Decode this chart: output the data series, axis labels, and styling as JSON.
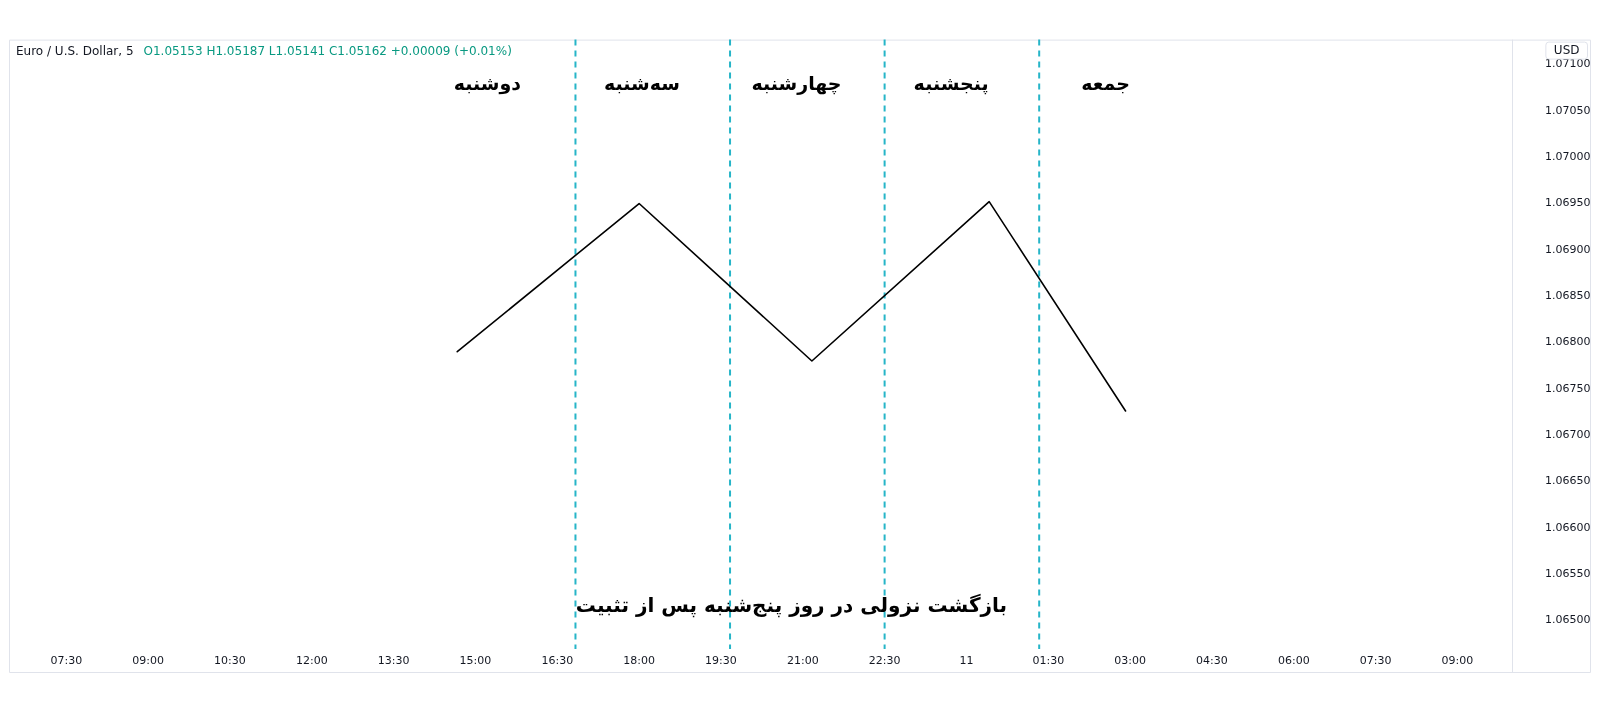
{
  "chart_data": {
    "type": "line",
    "title": "Euro / U.S. Dollar, 5",
    "subtitle": "O1.05153 H1.05187 L1.05141 C1.05162 +0.00009 (+0.01%)",
    "ylabel": "USD",
    "x": [
      "--01-10T14:40",
      "--01-10T18:00",
      "--01-10T21:10",
      "--01-11T00:25",
      "--01-11T02:55"
    ],
    "series": [
      {
        "color": "#000000",
        "values": [
          1.0679,
          1.0695,
          1.0678,
          1.06952,
          1.06726
        ]
      }
    ],
    "xlim": [
      "--01-10T06:27",
      "--01-11T10:00"
    ],
    "xticks": [
      {
        "value": "--01-10T07:30",
        "label": "07:30"
      },
      {
        "value": "--01-10T09:00",
        "label": "09:00"
      },
      {
        "value": "--01-10T10:30",
        "label": "10:30"
      },
      {
        "value": "--01-10T12:00",
        "label": "12:00"
      },
      {
        "value": "--01-10T13:30",
        "label": "13:30"
      },
      {
        "value": "--01-10T15:00",
        "label": "15:00"
      },
      {
        "value": "--01-10T16:30",
        "label": "16:30"
      },
      {
        "value": "--01-10T18:00",
        "label": "18:00"
      },
      {
        "value": "--01-10T19:30",
        "label": "19:30"
      },
      {
        "value": "--01-10T21:00",
        "label": "21:00"
      },
      {
        "value": "--01-10T22:30",
        "label": "22:30"
      },
      {
        "value": "--01-11T00:00",
        "label": "11"
      },
      {
        "value": "--01-11T01:30",
        "label": "01:30"
      },
      {
        "value": "--01-11T03:00",
        "label": "03:00"
      },
      {
        "value": "--01-11T04:30",
        "label": "04:30"
      },
      {
        "value": "--01-11T06:00",
        "label": "06:00"
      },
      {
        "value": "--01-11T07:30",
        "label": "07:30"
      },
      {
        "value": "--01-11T09:00",
        "label": "09:00"
      }
    ],
    "ylim": [
      1.06469,
      1.07127
    ],
    "yticks": [
      {
        "value": 1.065,
        "label": "1.06500"
      },
      {
        "value": 1.0655,
        "label": "1.06550"
      },
      {
        "value": 1.066,
        "label": "1.06600"
      },
      {
        "value": 1.0665,
        "label": "1.06650"
      },
      {
        "value": 1.067,
        "label": "1.06700"
      },
      {
        "value": 1.0675,
        "label": "1.06750"
      },
      {
        "value": 1.068,
        "label": "1.06800"
      },
      {
        "value": 1.0685,
        "label": "1.06850"
      },
      {
        "value": 1.069,
        "label": "1.06900"
      },
      {
        "value": 1.0695,
        "label": "1.06950"
      },
      {
        "value": 1.07,
        "label": "1.07000"
      },
      {
        "value": 1.0705,
        "label": "1.07050"
      },
      {
        "value": 1.071,
        "label": "1.07100"
      }
    ],
    "ref_lines": [
      {
        "axis": "x",
        "value": "--01-10T16:50",
        "color": "#26b5c8",
        "line_style": "dashed"
      },
      {
        "axis": "x",
        "value": "--01-10T19:40",
        "color": "#26b5c8",
        "line_style": "dashed"
      },
      {
        "axis": "x",
        "value": "--01-10T22:30",
        "color": "#26b5c8",
        "line_style": "dashed"
      },
      {
        "axis": "x",
        "value": "--01-11T01:20",
        "color": "#26b5c8",
        "line_style": "dashed"
      }
    ],
    "annotations": [
      "دوشنبه",
      "سه‌شنبه",
      "چهارشنبه",
      "پنجشنبه",
      "جمعه",
      "بازگشت نزولی در روز پنج‌شنبه پس از تثبیت"
    ],
    "marker": "none"
  }
}
